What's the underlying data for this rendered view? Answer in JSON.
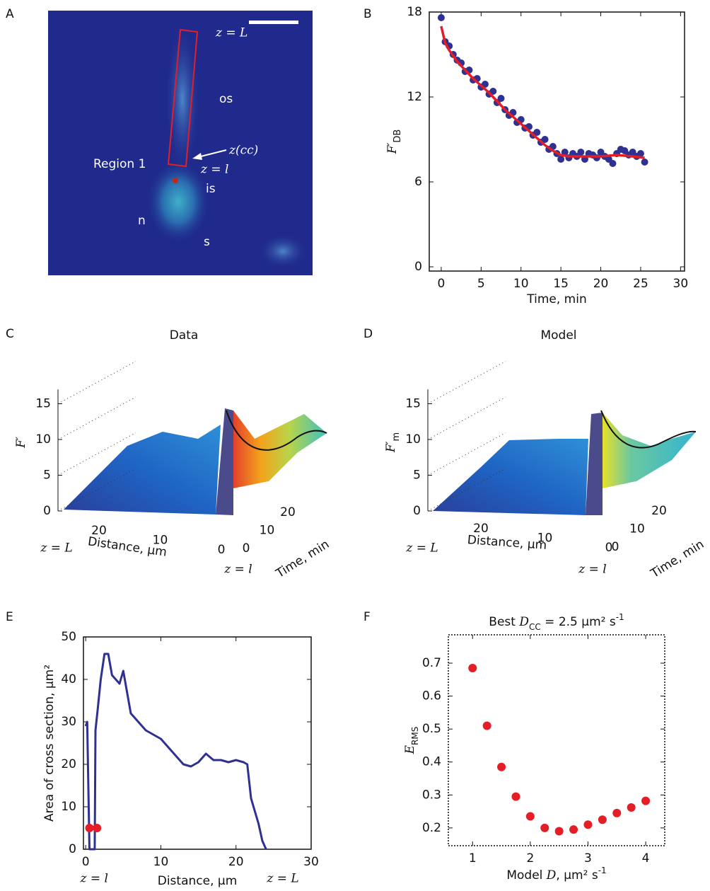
{
  "panel_labels": [
    "A",
    "B",
    "C",
    "D",
    "E",
    "F"
  ],
  "image_a": {
    "labels": [
      "z = L",
      "os",
      "z(cc)",
      "Region 1",
      "z = l",
      "is",
      "n",
      "s"
    ]
  },
  "chart_data": [
    {
      "type": "scatter",
      "ylabel": "F′",
      "ylabel_sub": "DB",
      "xlabel": "Time, min",
      "xlim": [
        -1.5,
        30.5
      ],
      "xticks": [
        0,
        5,
        10,
        15,
        20,
        25,
        30
      ],
      "ylim": [
        -0.3,
        18
      ],
      "yticks": [
        0,
        6,
        12,
        18
      ],
      "frame": "solid",
      "series": [
        {
          "type": "scatter",
          "color": "#2e3192",
          "x": [
            0,
            0.5,
            1,
            1.5,
            2,
            2.5,
            3,
            3.5,
            4,
            4.5,
            5,
            5.5,
            6,
            6.5,
            7,
            7.5,
            8,
            8.5,
            9,
            9.5,
            10,
            10.5,
            11,
            11.5,
            12,
            12.5,
            13,
            13.5,
            14,
            14.5,
            15,
            15.5,
            16,
            16.5,
            17,
            17.5,
            18,
            18.5,
            19,
            19.5,
            20,
            20.5,
            21,
            21.5,
            22,
            22.5,
            23,
            23.5,
            24,
            24.5,
            25,
            25.5
          ],
          "values": [
            17.6,
            15.9,
            15.6,
            15.0,
            14.6,
            14.4,
            13.8,
            13.9,
            13.2,
            13.3,
            12.7,
            12.9,
            12.2,
            12.4,
            11.6,
            11.9,
            11.1,
            10.7,
            10.9,
            10.2,
            10.4,
            9.8,
            9.9,
            9.3,
            9.5,
            8.8,
            9.0,
            8.3,
            8.5,
            8.0,
            7.6,
            8.1,
            7.7,
            8.0,
            7.8,
            8.1,
            7.6,
            8.0,
            7.9,
            7.7,
            8.1,
            7.8,
            7.6,
            7.3,
            8.0,
            8.3,
            8.2,
            7.9,
            8.1,
            7.8,
            8.0,
            7.4
          ]
        },
        {
          "type": "line",
          "color": "#e41e26",
          "x": [
            0,
            0.5,
            1,
            2,
            3,
            4,
            5,
            6,
            7,
            8,
            9,
            10,
            11,
            12,
            13,
            14,
            15,
            16,
            17,
            18,
            20,
            22,
            24,
            25.5
          ],
          "values": [
            17,
            15.8,
            15.3,
            14.5,
            13.9,
            13.3,
            12.8,
            12.3,
            11.7,
            11.1,
            10.6,
            10.1,
            9.6,
            9.1,
            8.6,
            8.2,
            7.9,
            7.8,
            7.8,
            7.8,
            7.8,
            7.9,
            7.8,
            7.7
          ]
        }
      ]
    },
    {
      "type": "surface",
      "title": "Data",
      "zlabel": "F′",
      "zlabel_sub": null,
      "zlim": [
        0,
        17
      ],
      "zticks": [
        0,
        5,
        10,
        15
      ],
      "xticks": [
        20,
        10,
        0
      ],
      "yticks": [
        0,
        10,
        20
      ],
      "xlabel": "Distance, μm",
      "ylabel": "Time, min",
      "end_labels": [
        "z = L",
        "z = l"
      ]
    },
    {
      "type": "surface",
      "title": "Model",
      "zlabel": "F′",
      "zlabel_sub": "m",
      "zlim": [
        0,
        17
      ],
      "zticks": [
        0,
        5,
        10,
        15
      ],
      "xticks": [
        20,
        10,
        0
      ],
      "yticks": [
        0,
        10,
        20
      ],
      "xlabel": "Distance, μm",
      "ylabel": "Time, min",
      "end_labels": [
        "z = L",
        "z = l"
      ]
    },
    {
      "type": "line",
      "ylabel": "Area of cross section, μm²",
      "xlabel": "Distance, μm",
      "xlim": [
        -0.3,
        30
      ],
      "xticks": [
        0,
        10,
        20,
        30
      ],
      "ylim": [
        0,
        50
      ],
      "yticks": [
        0,
        10,
        20,
        30,
        40,
        50
      ],
      "frame": "solid",
      "end_labels": [
        "z = l",
        "z = L"
      ],
      "series": [
        {
          "type": "line",
          "color": "#2e3192",
          "x": [
            0,
            0.2,
            0.5,
            0.8,
            1.2,
            1.3,
            1.6,
            2,
            2.5,
            3,
            3.5,
            4,
            4.5,
            5,
            5.5,
            6,
            7,
            8,
            9,
            10,
            11,
            12,
            13,
            14,
            15,
            16,
            17,
            18,
            19,
            20,
            21,
            21.5,
            22,
            23,
            23.5,
            24
          ],
          "values": [
            29,
            30,
            0,
            0,
            0,
            28,
            33,
            40,
            46,
            46,
            41,
            40,
            39,
            42,
            37,
            32,
            30,
            28,
            27,
            26,
            24,
            22,
            20,
            19.5,
            20.5,
            22.5,
            21,
            21,
            20.5,
            21,
            20.5,
            20,
            12,
            6,
            2,
            0
          ]
        },
        {
          "type": "scatter",
          "color": "#e41e26",
          "x": [
            0.5,
            1.5
          ],
          "values": [
            5,
            5
          ]
        }
      ]
    },
    {
      "type": "scatter",
      "title_parts": [
        "Best ",
        "D",
        "CC",
        " = 2.5 μm²",
        " s",
        "-1"
      ],
      "ylabel_parts": [
        "E",
        "RMS"
      ],
      "xlabel_parts": [
        "Model ",
        "D",
        ", μm² s",
        "-1"
      ],
      "xlim": [
        0.58,
        4.33
      ],
      "xticks": [
        1,
        2,
        3,
        4
      ],
      "ylim": [
        0.146,
        0.786
      ],
      "yticks": [
        0.2,
        0.3,
        0.4,
        0.5,
        0.6,
        0.7
      ],
      "frame": "dotted",
      "series": [
        {
          "type": "scatter",
          "color": "#e41e26",
          "x": [
            1,
            1.25,
            1.5,
            1.75,
            2,
            2.25,
            2.5,
            2.75,
            3,
            3.25,
            3.5,
            3.75,
            4
          ],
          "values": [
            0.685,
            0.51,
            0.385,
            0.295,
            0.235,
            0.2,
            0.19,
            0.195,
            0.21,
            0.225,
            0.245,
            0.262,
            0.282
          ]
        }
      ]
    }
  ]
}
